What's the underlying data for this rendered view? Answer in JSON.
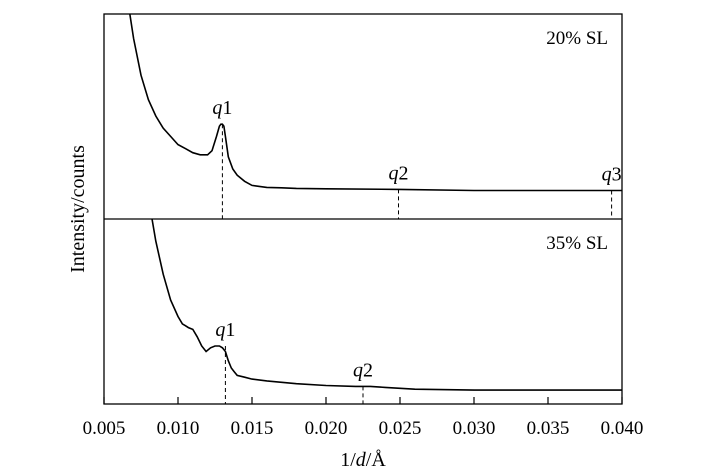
{
  "chart_data": {
    "type": "line",
    "xlabel_parts": [
      "1/",
      "d",
      "/Å"
    ],
    "ylabel": "Intensity/counts",
    "xlim": [
      0.005,
      0.04
    ],
    "x_ticks": [
      "0.005",
      "0.010",
      "0.015",
      "0.020",
      "0.025",
      "0.030",
      "0.035",
      "0.040"
    ],
    "x_tick_values": [
      0.005,
      0.01,
      0.015,
      0.02,
      0.025,
      0.03,
      0.035,
      0.04
    ],
    "grid": false,
    "panels": [
      {
        "label": "20% SL",
        "ylim": [
          0,
          1
        ],
        "series": [
          {
            "x": [
              0.0067,
              0.007,
              0.0075,
              0.008,
              0.0085,
              0.009,
              0.0095,
              0.01,
              0.0105,
              0.011,
              0.0115,
              0.012,
              0.0123,
              0.0126,
              0.0128,
              0.0129,
              0.013,
              0.0131,
              0.0132,
              0.0134,
              0.0137,
              0.014,
              0.0145,
              0.015,
              0.0155,
              0.016,
              0.017,
              0.018,
              0.02,
              0.025,
              0.03,
              0.035,
              0.04
            ],
            "y": [
              1.02,
              0.88,
              0.7,
              0.58,
              0.5,
              0.44,
              0.4,
              0.36,
              0.34,
              0.32,
              0.31,
              0.31,
              0.33,
              0.4,
              0.45,
              0.46,
              0.46,
              0.45,
              0.4,
              0.3,
              0.24,
              0.21,
              0.18,
              0.16,
              0.155,
              0.15,
              0.148,
              0.145,
              0.143,
              0.14,
              0.135,
              0.135,
              0.135
            ]
          }
        ],
        "peaks": [
          {
            "prefix": "q",
            "index": "1",
            "x": 0.013,
            "y": 0.46
          },
          {
            "prefix": "q",
            "index": "2",
            "x": 0.0249,
            "y": 0.14
          },
          {
            "prefix": "q",
            "index": "3",
            "x": 0.0393,
            "y": 0.135
          }
        ]
      },
      {
        "label": "35% SL",
        "ylim": [
          0,
          1
        ],
        "series": [
          {
            "x": [
              0.0082,
              0.0085,
              0.009,
              0.0095,
              0.01,
              0.0103,
              0.0105,
              0.0107,
              0.011,
              0.0113,
              0.0116,
              0.0119,
              0.0122,
              0.0125,
              0.0128,
              0.013,
              0.0132,
              0.0134,
              0.0136,
              0.0138,
              0.014,
              0.0145,
              0.015,
              0.016,
              0.018,
              0.02,
              0.022,
              0.023,
              0.024,
              0.026,
              0.03,
              0.035,
              0.04
            ],
            "y": [
              1.02,
              0.88,
              0.7,
              0.56,
              0.47,
              0.43,
              0.42,
              0.41,
              0.4,
              0.36,
              0.31,
              0.28,
              0.3,
              0.31,
              0.31,
              0.3,
              0.28,
              0.23,
              0.19,
              0.17,
              0.15,
              0.14,
              0.13,
              0.12,
              0.105,
              0.095,
              0.09,
              0.09,
              0.085,
              0.075,
              0.07,
              0.07,
              0.07
            ]
          }
        ],
        "peaks": [
          {
            "prefix": "q",
            "index": "1",
            "x": 0.0132,
            "y": 0.31
          },
          {
            "prefix": "q",
            "index": "2",
            "x": 0.0225,
            "y": 0.09
          }
        ]
      }
    ]
  }
}
